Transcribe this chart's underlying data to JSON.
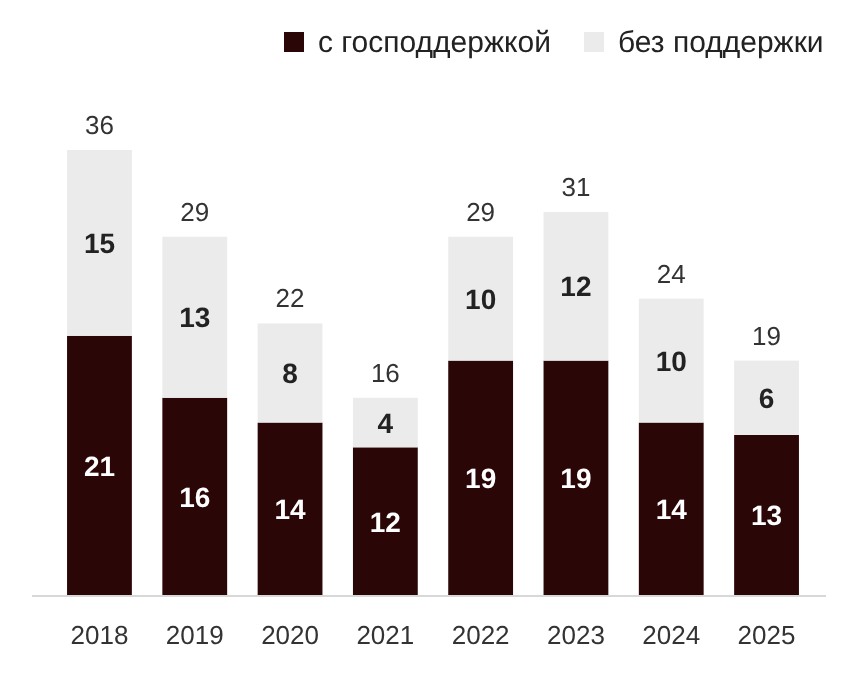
{
  "chart_data": {
    "type": "bar",
    "stacked": true,
    "categories": [
      "2018",
      "2019",
      "2020",
      "2021",
      "2022",
      "2023",
      "2024",
      "2025"
    ],
    "series": [
      {
        "name": "с господдержкой",
        "color": "#2a0606",
        "values": [
          21,
          16,
          14,
          12,
          19,
          19,
          14,
          13
        ]
      },
      {
        "name": "без поддержки",
        "color": "#ebebeb",
        "values": [
          15,
          13,
          8,
          4,
          10,
          12,
          10,
          6
        ]
      }
    ],
    "data_labels": true,
    "totals": [
      "36",
      "29",
      "22",
      "16",
      "29",
      "31",
      "24",
      "19"
    ],
    "legend": "top right"
  }
}
